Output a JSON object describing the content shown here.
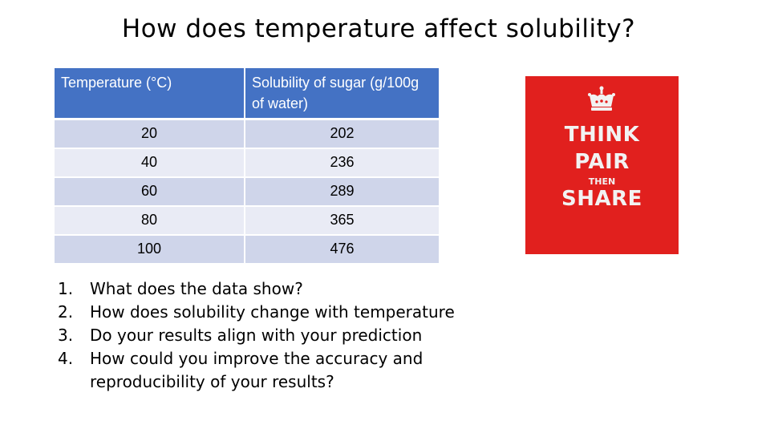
{
  "title": "How does temperature affect solubility?",
  "table": {
    "headers": [
      "Temperature (°C)",
      "Solubility of sugar (g/100g of water)"
    ],
    "rows": [
      [
        "20",
        "202"
      ],
      [
        "40",
        "236"
      ],
      [
        "60",
        "289"
      ],
      [
        "80",
        "365"
      ],
      [
        "100",
        "476"
      ]
    ]
  },
  "poster": {
    "icon": "crown-icon",
    "line1": "THINK",
    "line2": "PAIR",
    "line3": "THEN",
    "line4": "SHARE",
    "background": "#e1201e"
  },
  "questions": [
    {
      "num": "1.",
      "text": "What does the data show?"
    },
    {
      "num": "2.",
      "text": "How does solubility change with temperature"
    },
    {
      "num": "3.",
      "text": "Do your results align with your prediction"
    },
    {
      "num": "4.",
      "text": "How could you improve the accuracy and reproducibility of your results?"
    }
  ],
  "colors": {
    "header": "#4472c4",
    "row_odd": "#cfd5ea",
    "row_even": "#e9ebf5"
  }
}
